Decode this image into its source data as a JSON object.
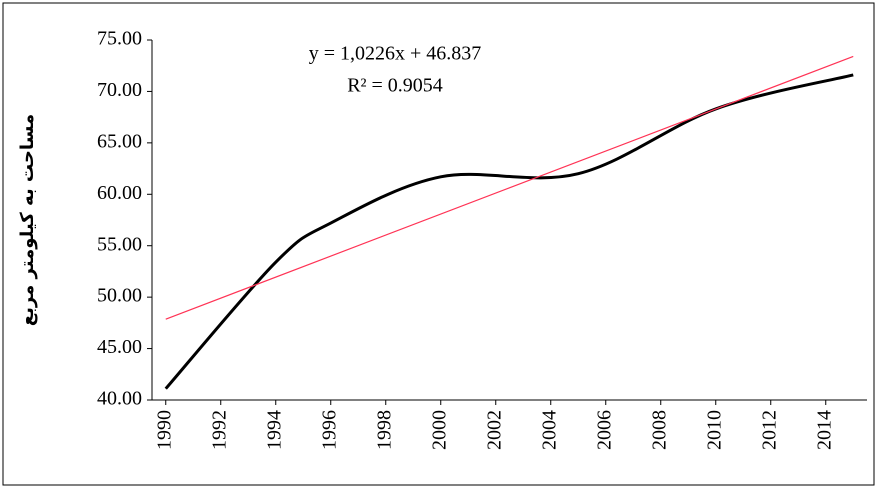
{
  "chart_data": {
    "type": "line",
    "y_label": "مساحت به کیلومتر مربع",
    "annotations": [
      "y = 1,0226x + 46.837",
      "R² = 0.9054"
    ],
    "series": [
      {
        "name": "area",
        "color": "#000000",
        "x": [
          1990,
          1994,
          1996,
          2000,
          2005,
          2010,
          2015
        ],
        "values": [
          41.1,
          53.4,
          57.2,
          61.7,
          62.0,
          68.3,
          71.6
        ]
      },
      {
        "name": "trend",
        "color": "#ff3355",
        "x": [
          1990,
          2015
        ],
        "values": [
          47.86,
          73.4
        ]
      }
    ],
    "xlim": [
      1989.5,
      2015.5
    ],
    "xticks": [
      1990,
      1992,
      1994,
      1996,
      1998,
      2000,
      2002,
      2004,
      2006,
      2008,
      2010,
      2012,
      2014
    ],
    "ylim": [
      40,
      75
    ],
    "yticks": [
      {
        "value": 40,
        "label": "40.00"
      },
      {
        "value": 45,
        "label": "45.00"
      },
      {
        "value": 50,
        "label": "50.00"
      },
      {
        "value": 55,
        "label": "55.00"
      },
      {
        "value": 60,
        "label": "60.00"
      },
      {
        "value": 65,
        "label": "65.00"
      },
      {
        "value": 70,
        "label": "70.00"
      },
      {
        "value": 75,
        "label": "75.00"
      }
    ]
  }
}
